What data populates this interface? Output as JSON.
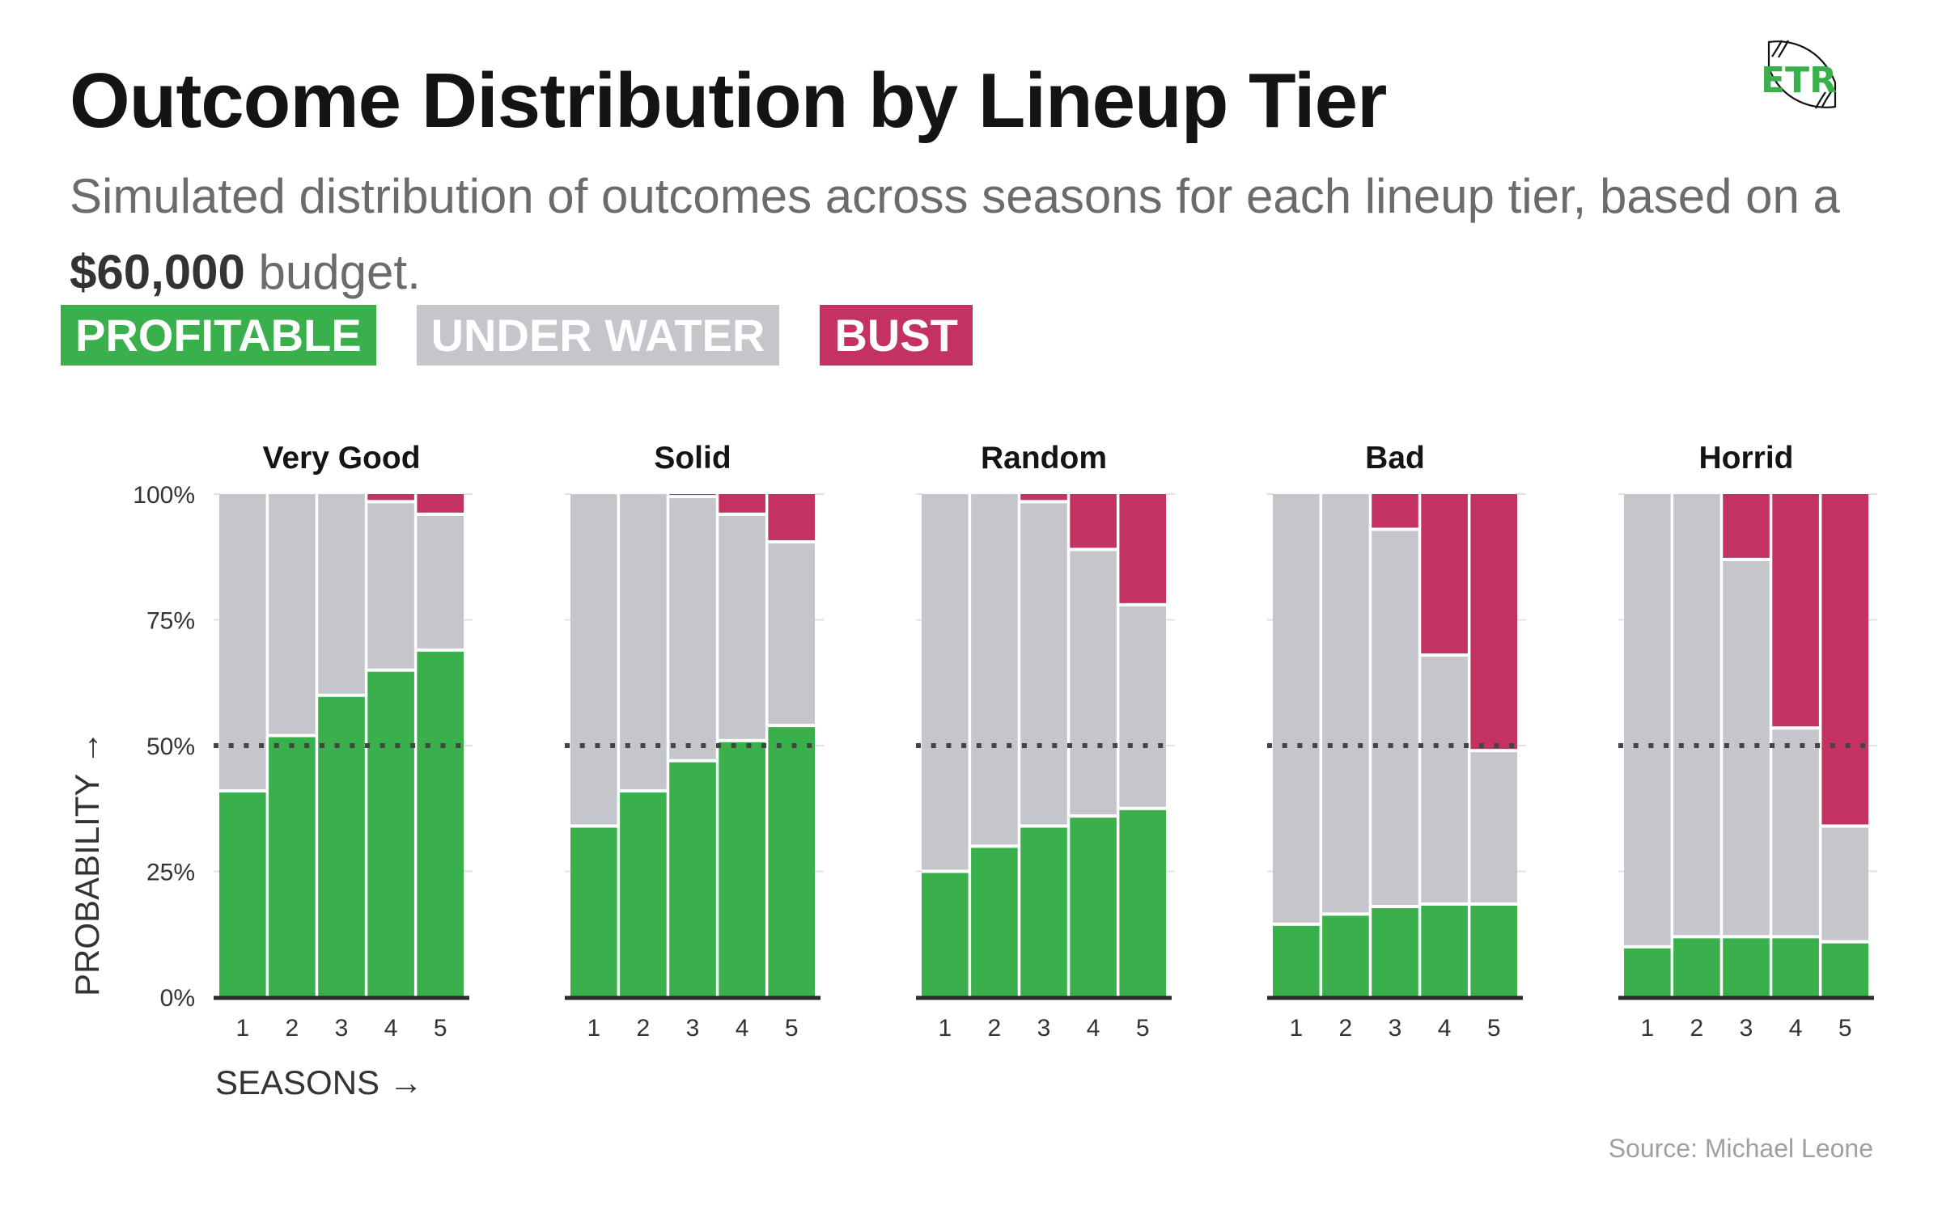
{
  "header": {
    "title": "Outcome Distribution by Lineup Tier",
    "subtitle_pre": "Simulated distribution of outcomes across seasons for each lineup tier, based on a ",
    "subtitle_bold": "$60,000",
    "subtitle_post": " budget."
  },
  "logo": {
    "text": "ETR",
    "icon": "football-icon",
    "color": "#39b04c"
  },
  "legend": [
    {
      "label": "PROFITABLE",
      "color": "#39b04c"
    },
    {
      "label": "UNDER WATER",
      "color": "#c5c6cb"
    },
    {
      "label": "BUST",
      "color": "#c43262"
    }
  ],
  "source": "Source: Michael Leone",
  "chart_data": {
    "type": "bar",
    "stacked": true,
    "title": "Outcome Distribution by Lineup Tier",
    "xlabel": "SEASONS →",
    "ylabel": "PROBABILITY →",
    "ylim": [
      0,
      1
    ],
    "yticks": [
      {
        "value": 0,
        "label": "0%"
      },
      {
        "value": 0.25,
        "label": "25%"
      },
      {
        "value": 0.5,
        "label": "50%"
      },
      {
        "value": 0.75,
        "label": "75%"
      },
      {
        "value": 1,
        "label": "100%"
      }
    ],
    "reference_line": {
      "value": 0.5,
      "style": "dotted"
    },
    "categories": [
      "1",
      "2",
      "3",
      "4",
      "5"
    ],
    "series_names": [
      "Profitable",
      "Under Water",
      "Bust"
    ],
    "series_colors": [
      "#39b04c",
      "#c5c6cb",
      "#c43262"
    ],
    "panels": [
      {
        "name": "Very Good",
        "profitable": [
          0.41,
          0.52,
          0.6,
          0.65,
          0.69
        ],
        "under_water": [
          0.59,
          0.48,
          0.4,
          0.335,
          0.27
        ],
        "bust": [
          0.0,
          0.0,
          0.0,
          0.015,
          0.04
        ]
      },
      {
        "name": "Solid",
        "profitable": [
          0.34,
          0.41,
          0.47,
          0.51,
          0.54
        ],
        "under_water": [
          0.66,
          0.59,
          0.525,
          0.45,
          0.365
        ],
        "bust": [
          0.0,
          0.0,
          0.005,
          0.04,
          0.095
        ]
      },
      {
        "name": "Random",
        "profitable": [
          0.25,
          0.3,
          0.34,
          0.36,
          0.375
        ],
        "under_water": [
          0.75,
          0.7,
          0.645,
          0.53,
          0.405
        ],
        "bust": [
          0.0,
          0.0,
          0.015,
          0.11,
          0.22
        ]
      },
      {
        "name": "Bad",
        "profitable": [
          0.145,
          0.165,
          0.18,
          0.185,
          0.185
        ],
        "under_water": [
          0.855,
          0.835,
          0.75,
          0.495,
          0.305
        ],
        "bust": [
          0.0,
          0.0,
          0.07,
          0.32,
          0.51
        ]
      },
      {
        "name": "Horrid",
        "profitable": [
          0.1,
          0.12,
          0.12,
          0.12,
          0.11
        ],
        "under_water": [
          0.9,
          0.88,
          0.75,
          0.415,
          0.23
        ],
        "bust": [
          0.0,
          0.0,
          0.13,
          0.465,
          0.66
        ]
      }
    ]
  }
}
